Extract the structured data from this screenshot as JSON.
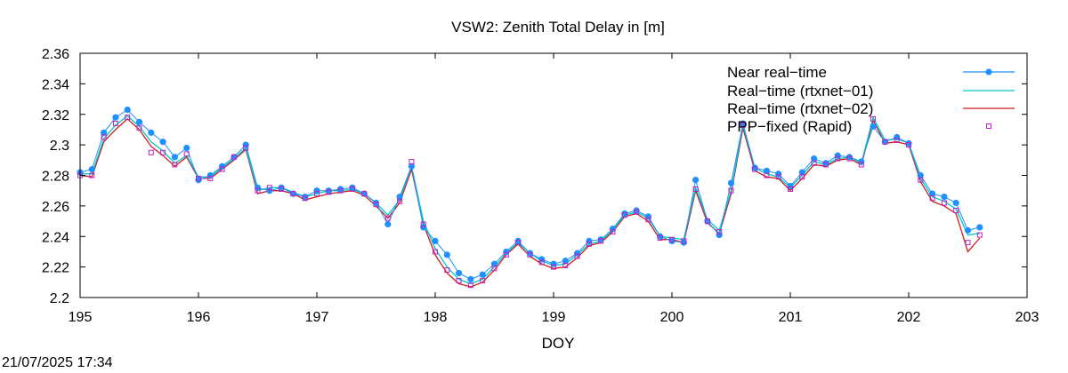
{
  "chart_data": {
    "type": "line",
    "title": "VSW2: Zenith Total Delay in [m]",
    "xlabel": "DOY",
    "ylabel": "",
    "xlim": [
      195,
      203
    ],
    "ylim": [
      2.2,
      2.36
    ],
    "xticks": [
      "195",
      "196",
      "197",
      "198",
      "199",
      "200",
      "201",
      "202",
      "203"
    ],
    "yticks": [
      "2.2",
      "2.22",
      "2.24",
      "2.26",
      "2.28",
      "2.3",
      "2.32",
      "2.34",
      "2.36"
    ],
    "grid": false,
    "legend_position": "top-right",
    "x": [
      195.0,
      195.1,
      195.2,
      195.3,
      195.4,
      195.5,
      195.6,
      195.7,
      195.8,
      195.9,
      196.0,
      196.1,
      196.2,
      196.3,
      196.4,
      196.5,
      196.6,
      196.7,
      196.8,
      196.9,
      197.0,
      197.1,
      197.2,
      197.3,
      197.4,
      197.5,
      197.6,
      197.7,
      197.8,
      197.9,
      198.0,
      198.1,
      198.2,
      198.3,
      198.4,
      198.5,
      198.6,
      198.7,
      198.8,
      198.9,
      199.0,
      199.1,
      199.2,
      199.3,
      199.4,
      199.5,
      199.6,
      199.7,
      199.8,
      199.9,
      200.0,
      200.1,
      200.2,
      200.3,
      200.4,
      200.5,
      200.6,
      200.7,
      200.8,
      200.9,
      201.0,
      201.1,
      201.2,
      201.3,
      201.4,
      201.5,
      201.6,
      201.7,
      201.8,
      201.9,
      202.0,
      202.1,
      202.2,
      202.3,
      202.4,
      202.5,
      202.6
    ],
    "series": [
      {
        "name": "Near real−time",
        "style": "line-points",
        "color": "#1e90ff",
        "values": [
          2.282,
          2.284,
          2.308,
          2.318,
          2.323,
          2.315,
          2.308,
          2.302,
          2.292,
          2.298,
          2.277,
          2.28,
          2.286,
          2.292,
          2.3,
          2.272,
          2.27,
          2.272,
          2.268,
          2.266,
          2.27,
          2.27,
          2.271,
          2.272,
          2.268,
          2.262,
          2.248,
          2.266,
          2.286,
          2.246,
          2.237,
          2.228,
          2.216,
          2.212,
          2.215,
          2.222,
          2.23,
          2.237,
          2.229,
          2.225,
          2.222,
          2.224,
          2.229,
          2.237,
          2.238,
          2.245,
          2.255,
          2.257,
          2.253,
          2.24,
          2.237,
          2.236,
          2.277,
          2.25,
          2.241,
          2.275,
          2.314,
          2.285,
          2.283,
          2.281,
          2.273,
          2.282,
          2.291,
          2.288,
          2.293,
          2.292,
          2.289,
          2.312,
          2.302,
          2.305,
          2.301,
          2.28,
          2.268,
          2.266,
          2.262,
          2.244,
          2.246
        ]
      },
      {
        "name": "Real−time (rtxnet−01)",
        "style": "line",
        "color": "#00c8c8",
        "values": [
          2.281,
          2.281,
          2.304,
          2.313,
          2.319,
          2.312,
          2.302,
          2.296,
          2.288,
          2.293,
          2.279,
          2.279,
          2.285,
          2.291,
          2.298,
          2.27,
          2.272,
          2.272,
          2.269,
          2.266,
          2.268,
          2.27,
          2.27,
          2.271,
          2.268,
          2.262,
          2.254,
          2.264,
          2.286,
          2.25,
          2.232,
          2.22,
          2.212,
          2.209,
          2.212,
          2.22,
          2.229,
          2.236,
          2.229,
          2.224,
          2.221,
          2.222,
          2.228,
          2.235,
          2.237,
          2.244,
          2.254,
          2.256,
          2.252,
          2.24,
          2.239,
          2.238,
          2.272,
          2.251,
          2.244,
          2.27,
          2.313,
          2.285,
          2.281,
          2.279,
          2.272,
          2.28,
          2.289,
          2.287,
          2.291,
          2.292,
          2.288,
          2.318,
          2.303,
          2.304,
          2.301,
          2.278,
          2.266,
          2.263,
          2.258,
          2.241,
          2.242
        ]
      },
      {
        "name": "Real−time (rtxnet−02)",
        "style": "line",
        "color": "#d01c1c",
        "values": [
          2.28,
          2.279,
          2.302,
          2.31,
          2.317,
          2.31,
          2.299,
          2.293,
          2.286,
          2.292,
          2.278,
          2.278,
          2.284,
          2.29,
          2.297,
          2.268,
          2.27,
          2.27,
          2.268,
          2.264,
          2.266,
          2.268,
          2.269,
          2.27,
          2.267,
          2.26,
          2.252,
          2.262,
          2.284,
          2.248,
          2.228,
          2.216,
          2.209,
          2.207,
          2.21,
          2.218,
          2.228,
          2.235,
          2.227,
          2.222,
          2.219,
          2.22,
          2.226,
          2.234,
          2.236,
          2.243,
          2.253,
          2.255,
          2.25,
          2.238,
          2.238,
          2.236,
          2.27,
          2.249,
          2.242,
          2.268,
          2.311,
          2.283,
          2.279,
          2.278,
          2.27,
          2.278,
          2.287,
          2.286,
          2.29,
          2.291,
          2.287,
          2.316,
          2.301,
          2.302,
          2.3,
          2.276,
          2.263,
          2.26,
          2.255,
          2.23,
          2.239
        ]
      },
      {
        "name": "PPP−fixed (Rapid)",
        "style": "points-square",
        "color": "#c020c0",
        "values": [
          2.28,
          2.28,
          2.305,
          2.314,
          2.318,
          2.311,
          2.295,
          2.295,
          2.287,
          2.294,
          2.278,
          2.278,
          2.284,
          2.292,
          2.298,
          2.27,
          2.272,
          2.271,
          2.268,
          2.265,
          2.268,
          2.269,
          2.27,
          2.271,
          2.268,
          2.261,
          2.252,
          2.263,
          2.289,
          2.248,
          2.23,
          2.218,
          2.211,
          2.208,
          2.211,
          2.219,
          2.228,
          2.236,
          2.228,
          2.223,
          2.22,
          2.221,
          2.227,
          2.235,
          2.237,
          2.243,
          2.254,
          2.256,
          2.251,
          2.239,
          2.238,
          2.237,
          2.271,
          2.25,
          2.243,
          2.27,
          2.313,
          2.284,
          2.28,
          2.279,
          2.271,
          2.279,
          2.288,
          2.287,
          2.291,
          2.291,
          2.287,
          2.317,
          2.302,
          2.303,
          2.3,
          2.277,
          2.265,
          2.262,
          2.257,
          2.236,
          2.241
        ]
      }
    ]
  },
  "footer": {
    "timestamp": "21/07/2025 17:34"
  }
}
